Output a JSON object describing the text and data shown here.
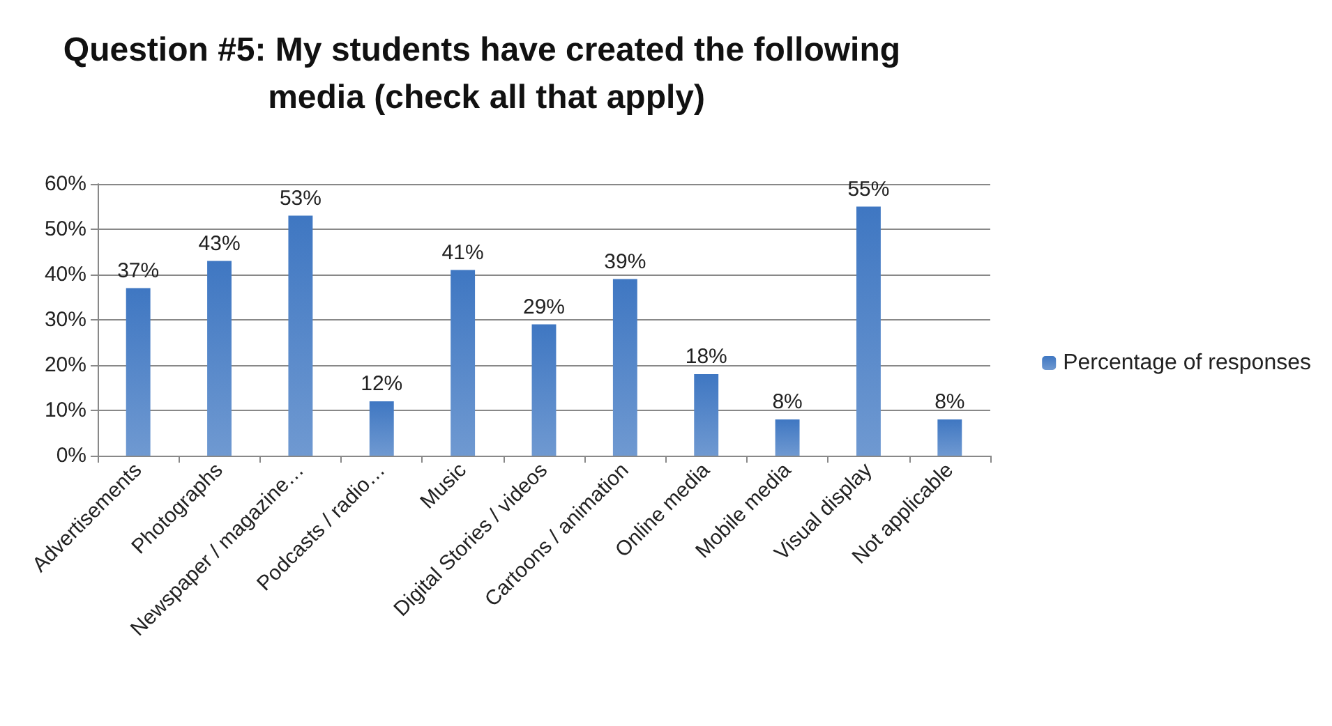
{
  "chart_data": {
    "type": "bar",
    "title": "Question #5: My students have created the following media (check all that apply)",
    "categories": [
      "Advertisements",
      "Photographs",
      "Newspaper / magazine…",
      "Podcasts / radio…",
      "Music",
      "Digital Stories / videos",
      "Cartoons / animation",
      "Online media",
      "Mobile media",
      "Visual display",
      "Not applicable"
    ],
    "series": [
      {
        "name": "Percentage of responses",
        "color": "#3f77c2",
        "values": [
          37,
          43,
          53,
          12,
          41,
          29,
          39,
          18,
          8,
          55,
          8
        ],
        "value_labels": [
          "37%",
          "43%",
          "53%",
          "12%",
          "41%",
          "29%",
          "39%",
          "18%",
          "8%",
          "55%",
          "8%"
        ]
      }
    ],
    "ylim": [
      0,
      60
    ],
    "yticks": [
      {
        "value": 0,
        "label": "0%"
      },
      {
        "value": 10,
        "label": "10%"
      },
      {
        "value": 20,
        "label": "20%"
      },
      {
        "value": 30,
        "label": "30%"
      },
      {
        "value": 40,
        "label": "40%"
      },
      {
        "value": 50,
        "label": "50%"
      },
      {
        "value": 60,
        "label": "60%"
      }
    ],
    "grid": "y",
    "legend": "right"
  }
}
